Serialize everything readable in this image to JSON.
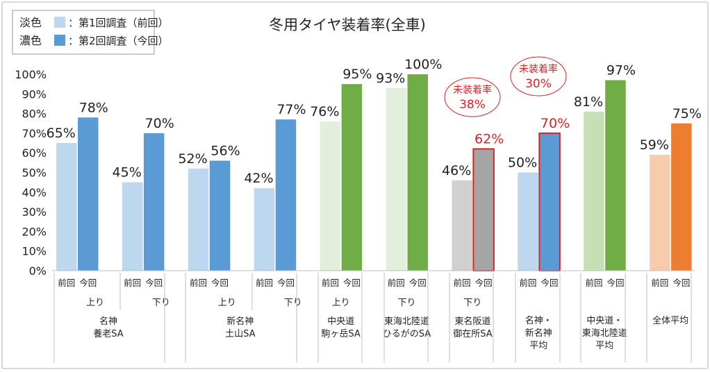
{
  "chart_data": {
    "type": "bar",
    "title": "冬用タイヤ装着率(全車)",
    "ylim": [
      0,
      100
    ],
    "yticks": [
      "0%",
      "10%",
      "20%",
      "30%",
      "40%",
      "50%",
      "60%",
      "70%",
      "80%",
      "90%",
      "100%"
    ],
    "grid": false,
    "legend": {
      "placement": "top-left",
      "rows": [
        {
          "prefix": "淡色",
          "text": "：第1回調査（前回）",
          "color": "#BDD7EE"
        },
        {
          "prefix": "濃色",
          "text": "：第2回調査（今回）",
          "color": "#5B9BD5"
        }
      ]
    },
    "series_labels": {
      "prev": "前回",
      "now": "今回"
    },
    "groups": [
      {
        "direction": "上り",
        "location": [
          "名神",
          "養老SA"
        ],
        "prev": 65,
        "now": 78,
        "prev_color": "#BDD7EE",
        "now_color": "#5B9BD5",
        "highlight": false
      },
      {
        "direction": "下り",
        "location": [],
        "prev": 45,
        "now": 70,
        "prev_color": "#BDD7EE",
        "now_color": "#5B9BD5",
        "highlight": false
      },
      {
        "direction": "上り",
        "location": [
          "新名神",
          "土山SA"
        ],
        "prev": 52,
        "now": 56,
        "prev_color": "#BDD7EE",
        "now_color": "#5B9BD5",
        "highlight": false
      },
      {
        "direction": "下り",
        "location": [],
        "prev": 42,
        "now": 77,
        "prev_color": "#BDD7EE",
        "now_color": "#5B9BD5",
        "highlight": false
      },
      {
        "direction": "上り",
        "location": [
          "中央道",
          "駒ヶ岳SA"
        ],
        "prev": 76,
        "now": 95,
        "prev_color": "#E2EFDA",
        "now_color": "#70AD47",
        "highlight": false
      },
      {
        "direction": "下り",
        "location": [
          "東海北陸道",
          "ひるがのSA"
        ],
        "prev": 93,
        "now": 100,
        "prev_color": "#E2EFDA",
        "now_color": "#70AD47",
        "highlight": false
      },
      {
        "direction": "下り",
        "location": [
          "東名阪道",
          "御在所SA"
        ],
        "prev": 46,
        "now": 62,
        "prev_color": "#D0D0D0",
        "now_color": "#A5A5A5",
        "highlight": true
      },
      {
        "direction": "",
        "location": [
          "名神・",
          "新名神",
          "平均"
        ],
        "prev": 50,
        "now": 70,
        "prev_color": "#BDD7EE",
        "now_color": "#5B9BD5",
        "highlight": true
      },
      {
        "direction": "",
        "location": [
          "中央道・",
          "東海北陸道",
          "平均"
        ],
        "prev": 81,
        "now": 97,
        "prev_color": "#C6E0B4",
        "now_color": "#70AD47",
        "highlight": false
      },
      {
        "direction": "",
        "location": [
          "全体平均"
        ],
        "prev": 59,
        "now": 75,
        "prev_color": "#F8CBAD",
        "now_color": "#ED7D31",
        "highlight": false
      }
    ],
    "annotations": [
      {
        "group": 6,
        "label": "未装着率",
        "value": "38%"
      },
      {
        "group": 7,
        "label": "未装着率",
        "value": "30%"
      }
    ],
    "highlight_color": "#E02020"
  }
}
